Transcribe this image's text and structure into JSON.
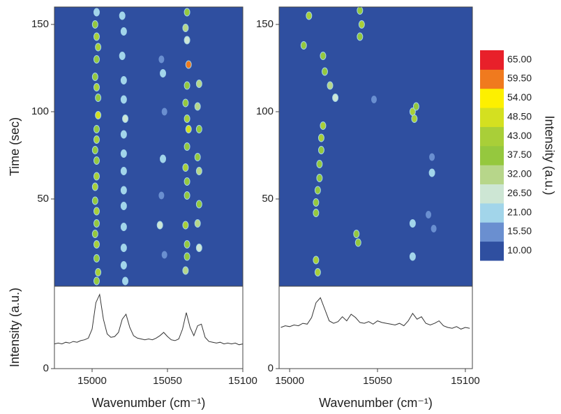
{
  "chart_data": [
    {
      "type": "heatmap",
      "ylabel": "Time (sec)",
      "xlim": [
        14975,
        15100
      ],
      "ylim": [
        0,
        160
      ],
      "yticks": [
        50,
        100,
        150
      ],
      "points": {
        "x": [
          15003,
          15002,
          15003,
          15004,
          15003,
          15002,
          15003,
          15004,
          15004,
          15003,
          15003,
          15002,
          15003,
          15003,
          15002,
          15002,
          15003,
          15003,
          15002,
          15003,
          15003,
          15004,
          15003,
          15020,
          15021,
          15020,
          15021,
          15021,
          15022,
          15021,
          15021,
          15021,
          15021,
          15021,
          15021,
          15021,
          15021,
          15022,
          15046,
          15047,
          15048,
          15047,
          15046,
          15045,
          15048,
          15063,
          15062,
          15063,
          15064,
          15063,
          15062,
          15063,
          15064,
          15063,
          15062,
          15063,
          15063,
          15062,
          15063,
          15063,
          15062,
          15071,
          15070,
          15071,
          15070,
          15071,
          15071,
          15070,
          15071
        ],
        "y": [
          157,
          150,
          143,
          137,
          130,
          120,
          114,
          108,
          98,
          90,
          84,
          78,
          72,
          63,
          57,
          49,
          43,
          36,
          30,
          24,
          16,
          8,
          3,
          155,
          146,
          132,
          118,
          107,
          96,
          87,
          76,
          66,
          55,
          46,
          34,
          22,
          12,
          3,
          130,
          122,
          100,
          73,
          52,
          35,
          18,
          157,
          148,
          141,
          127,
          115,
          105,
          96,
          90,
          80,
          68,
          60,
          52,
          35,
          24,
          17,
          9,
          116,
          103,
          90,
          74,
          66,
          47,
          36,
          22
        ],
        "values": [
          25,
          42,
          45,
          48,
          42,
          40,
          45,
          42,
          50,
          42,
          48,
          40,
          42,
          48,
          45,
          42,
          44,
          40,
          42,
          45,
          40,
          48,
          42,
          24,
          22,
          25,
          22,
          24,
          28,
          24,
          22,
          26,
          22,
          24,
          26,
          22,
          24,
          22,
          20,
          22,
          20,
          22,
          20,
          28,
          20,
          40,
          35,
          30,
          60,
          42,
          38,
          44,
          50,
          42,
          45,
          38,
          40,
          45,
          40,
          42,
          35,
          32,
          35,
          38,
          40,
          35,
          38,
          32,
          30
        ]
      }
    },
    {
      "type": "line",
      "ylabel": "Intensity (a.u.)",
      "xlabel": "Wavenumber (cm⁻¹)",
      "xlim": [
        14975,
        15100
      ],
      "xticks": [
        15000,
        15050,
        15100
      ],
      "ylim": [
        0,
        100
      ],
      "yticks": [
        0
      ],
      "color": "#333333",
      "x": [
        14975,
        14977.5,
        14980,
        14982.5,
        14985,
        14987.5,
        14990,
        14992.5,
        14995,
        14997.5,
        15000,
        15002.5,
        15005,
        15007.5,
        15010,
        15012.5,
        15015,
        15017.5,
        15020,
        15022.5,
        15025,
        15027.5,
        15030,
        15032.5,
        15035,
        15037.5,
        15040,
        15042.5,
        15045,
        15047.5,
        15050,
        15052.5,
        15055,
        15057.5,
        15060,
        15062.5,
        15065,
        15067.5,
        15070,
        15072.5,
        15075,
        15077.5,
        15080,
        15082.5,
        15085,
        15087.5,
        15090,
        15092.5,
        15095,
        15097.5,
        15100
      ],
      "values": [
        30,
        31,
        30,
        32,
        31,
        33,
        32,
        34,
        35,
        37,
        48,
        80,
        90,
        60,
        42,
        38,
        39,
        44,
        60,
        66,
        50,
        40,
        37,
        36,
        35,
        36,
        35,
        37,
        40,
        44,
        39,
        35,
        34,
        36,
        48,
        68,
        50,
        40,
        52,
        54,
        38,
        33,
        32,
        31,
        32,
        30,
        31,
        30,
        31,
        29,
        30
      ]
    },
    {
      "type": "heatmap",
      "xlim": [
        14994,
        15104
      ],
      "ylim": [
        0,
        160
      ],
      "yticks": [
        50,
        100,
        150
      ],
      "points": {
        "x": [
          15011,
          15008,
          15019,
          15020,
          15023,
          15026,
          15019,
          15018,
          15018,
          15017,
          15017,
          15016,
          15015,
          15015,
          15015,
          15016,
          15040,
          15041,
          15040,
          15038,
          15039,
          15070,
          15071,
          15072,
          15070,
          15070,
          15081,
          15081,
          15082,
          15079,
          15048
        ],
        "y": [
          155,
          138,
          132,
          123,
          115,
          108,
          92,
          85,
          78,
          70,
          62,
          55,
          48,
          42,
          15,
          8,
          158,
          150,
          143,
          30,
          25,
          100,
          96,
          103,
          36,
          17,
          65,
          74,
          33,
          41,
          107
        ],
        "values": [
          45,
          40,
          40,
          38,
          35,
          30,
          45,
          45,
          42,
          42,
          40,
          42,
          40,
          42,
          45,
          45,
          40,
          45,
          38,
          42,
          40,
          48,
          45,
          40,
          25,
          25,
          22,
          20,
          20,
          18,
          20
        ]
      }
    },
    {
      "type": "line",
      "xlabel": "Wavenumber (cm⁻¹)",
      "xlim": [
        14994,
        15104
      ],
      "xticks": [
        15000,
        15050,
        15100
      ],
      "ylim": [
        0,
        100
      ],
      "yticks": [
        0
      ],
      "color": "#333333",
      "x": [
        14995,
        14997.5,
        15000,
        15002.5,
        15005,
        15007.5,
        15010,
        15012.5,
        15015,
        15017.5,
        15020,
        15022.5,
        15025,
        15027.5,
        15030,
        15032.5,
        15035,
        15037.5,
        15040,
        15042.5,
        15045,
        15047.5,
        15050,
        15052.5,
        15055,
        15057.5,
        15060,
        15062.5,
        15065,
        15067.5,
        15070,
        15072.5,
        15075,
        15077.5,
        15080,
        15082.5,
        15085,
        15087.5,
        15090,
        15092.5,
        15095,
        15097.5,
        15100,
        15102.5
      ],
      "values": [
        50,
        52,
        51,
        53,
        52,
        55,
        54,
        62,
        80,
        86,
        72,
        58,
        55,
        57,
        63,
        58,
        66,
        62,
        56,
        55,
        57,
        54,
        58,
        56,
        55,
        54,
        53,
        55,
        52,
        58,
        67,
        60,
        63,
        55,
        53,
        55,
        58,
        52,
        50,
        49,
        51,
        48,
        50,
        49
      ]
    },
    {
      "type": "colorbar",
      "label": "Intensity (a.u.)",
      "levels": [
        {
          "value": 10,
          "label": "10.00"
        },
        {
          "value": 15.5,
          "label": "15.50"
        },
        {
          "value": 21,
          "label": "21.00"
        },
        {
          "value": 26.5,
          "label": "26.50"
        },
        {
          "value": 32,
          "label": "32.00"
        },
        {
          "value": 37.5,
          "label": "37.50"
        },
        {
          "value": 43,
          "label": "43.00"
        },
        {
          "value": 48.5,
          "label": "48.50"
        },
        {
          "value": 54,
          "label": "54.00"
        },
        {
          "value": 59.5,
          "label": "59.50"
        },
        {
          "value": 65,
          "label": "65.00"
        }
      ],
      "colors": [
        "#2f4fa0",
        "#6a8fd0",
        "#a2d5ea",
        "#cde6d4",
        "#b7d68a",
        "#95c83e",
        "#a9cf38",
        "#d4e020",
        "#fdf000",
        "#f07a1e",
        "#e8202a"
      ]
    }
  ]
}
